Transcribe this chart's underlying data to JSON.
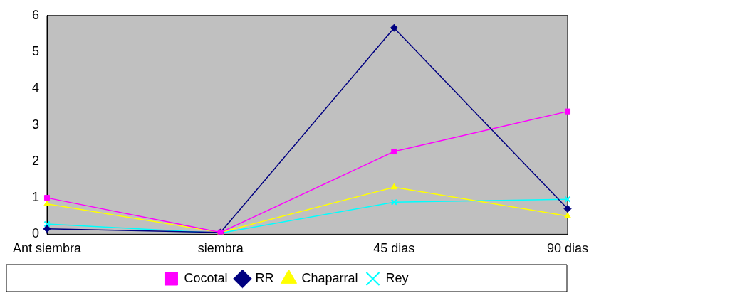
{
  "chart_data": {
    "type": "line",
    "categories": [
      "Ant siembra",
      "siembra",
      "45 dias",
      "90 dias"
    ],
    "series": [
      {
        "name": "Cocotal",
        "color": "#ff00ff",
        "marker": "square",
        "values": [
          1.0,
          0.05,
          2.27,
          3.37
        ]
      },
      {
        "name": "RR",
        "color": "#000080",
        "marker": "diamond",
        "values": [
          0.15,
          0.05,
          5.66,
          0.7
        ]
      },
      {
        "name": "Chaparral",
        "color": "#ffff00",
        "marker": "triangle",
        "values": [
          0.83,
          0.05,
          1.29,
          0.5
        ]
      },
      {
        "name": "Rey",
        "color": "#00ffff",
        "marker": "cross",
        "values": [
          0.28,
          0.03,
          0.88,
          0.96
        ]
      }
    ],
    "ylim": [
      0,
      6
    ],
    "yticks": [
      0,
      1,
      2,
      3,
      4,
      5,
      6
    ],
    "grid": false,
    "legend": "bottom",
    "line_style": "solid"
  }
}
